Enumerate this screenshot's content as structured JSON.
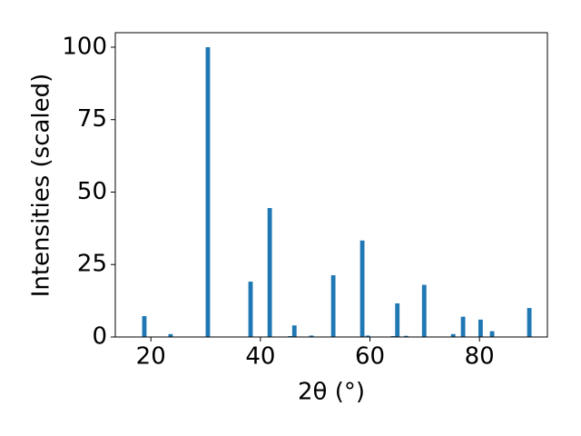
{
  "chart_data": {
    "type": "bar",
    "xlabel": "2θ (°)",
    "ylabel": "Intensities (scaled)",
    "x": [
      18.8,
      23.6,
      30.4,
      38.2,
      41.7,
      45.4,
      46.2,
      49.3,
      53.3,
      58.6,
      59.6,
      64.2,
      65.0,
      66.6,
      69.9,
      75.2,
      77.0,
      80.2,
      82.3,
      89.1
    ],
    "values": [
      7.2,
      1,
      100,
      19.1,
      44.5,
      0.3,
      4,
      0.5,
      21.3,
      33.3,
      0.5,
      0.3,
      11.6,
      0.4,
      18,
      1,
      7,
      6,
      2,
      10
    ],
    "color": "#1f77b4",
    "xlim": [
      13.5,
      92.4
    ],
    "xticks": [
      20,
      40,
      60,
      80
    ],
    "ylim": [
      0,
      105
    ],
    "yticks": [
      0,
      25,
      50,
      75,
      100
    ]
  }
}
